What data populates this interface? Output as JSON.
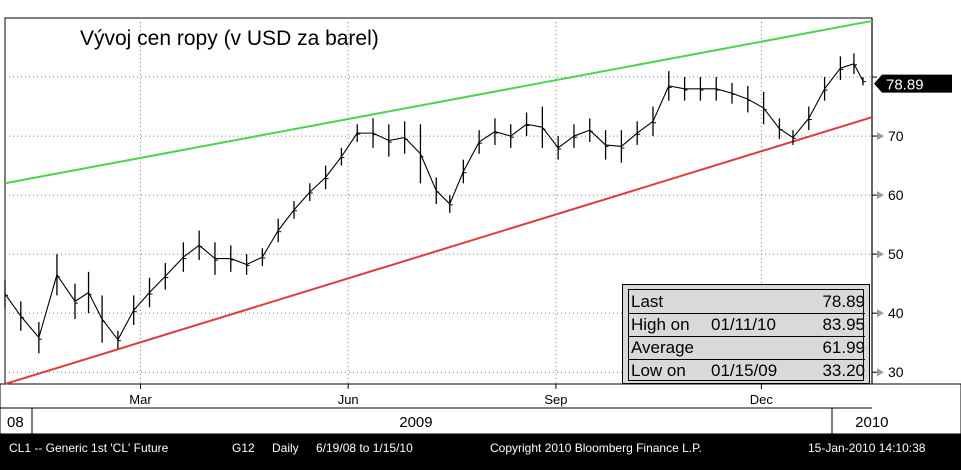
{
  "title": "Vývoj cen ropy (v USD za barel)",
  "last_price_label": "78.89",
  "stats_box": {
    "rows": [
      {
        "label": "Last",
        "date": "",
        "value": "78.89"
      },
      {
        "label": "High on",
        "date": "01/11/10",
        "value": "83.95"
      },
      {
        "label": "Average",
        "date": "",
        "value": "61.99"
      },
      {
        "label": "Low on",
        "date": "01/15/09",
        "value": "33.20"
      }
    ]
  },
  "footer": {
    "security": "CL1 -- Generic 1st 'CL' Future",
    "code": "G12",
    "period": "Daily",
    "range": "6/19/08 to 1/15/10",
    "copyright": "Copyright 2010 Bloomberg Finance L.P.",
    "timestamp": "15-Jan-2010 14:10:38"
  },
  "colors": {
    "background": "#ffffff",
    "price": "#000000",
    "resistance_line": "#4cd44c",
    "support_line": "#e03c3c",
    "grid": "#808080",
    "last_price_box": "#000000",
    "stats_box": "#d9d9d9",
    "statusbar": "#000000"
  },
  "chart_data": {
    "type": "line",
    "title": "Vývoj cen ropy (v USD za barel)",
    "style": "daily high-low bars",
    "x_range": [
      "2008-12-31",
      "2010-01-19"
    ],
    "ylim": [
      28.0,
      90.0
    ],
    "y_ticks": [
      30,
      40,
      50,
      60,
      70
    ],
    "month_ticks": [
      {
        "date": "2009-03-01",
        "label": "Mar"
      },
      {
        "date": "2009-06-01",
        "label": "Jun"
      },
      {
        "date": "2009-09-01",
        "label": "Sep"
      },
      {
        "date": "2009-12-01",
        "label": "Dec"
      }
    ],
    "year_labels": [
      {
        "date": "2008-12-31",
        "label": "08"
      },
      {
        "date": "2009-07-01",
        "label": "2009"
      },
      {
        "date": "2010-01-08",
        "label": "2010"
      }
    ],
    "grid": "dotted horizontal and vertical",
    "series": [
      {
        "x": [
          "2008-12-31",
          "2009-01-07",
          "2009-01-15",
          "2009-01-23",
          "2009-01-31",
          "2009-02-06",
          "2009-02-12",
          "2009-02-19",
          "2009-02-26",
          "2009-03-05",
          "2009-03-12",
          "2009-03-20",
          "2009-03-27",
          "2009-04-03",
          "2009-04-10",
          "2009-04-17",
          "2009-04-24",
          "2009-05-01",
          "2009-05-08",
          "2009-05-15",
          "2009-05-22",
          "2009-05-29",
          "2009-06-05",
          "2009-06-12",
          "2009-06-19",
          "2009-06-26",
          "2009-07-03",
          "2009-07-10",
          "2009-07-16",
          "2009-07-22",
          "2009-07-29",
          "2009-08-05",
          "2009-08-12",
          "2009-08-19",
          "2009-08-26",
          "2009-09-02",
          "2009-09-09",
          "2009-09-16",
          "2009-09-23",
          "2009-09-30",
          "2009-10-07",
          "2009-10-14",
          "2009-10-21",
          "2009-10-28",
          "2009-11-04",
          "2009-11-11",
          "2009-11-18",
          "2009-11-25",
          "2009-12-02",
          "2009-12-09",
          "2009-12-15",
          "2009-12-22",
          "2009-12-29",
          "2010-01-05",
          "2010-01-11",
          "2010-01-15"
        ],
        "high": [
          45.5,
          42.0,
          38.5,
          50.0,
          45.0,
          47.0,
          43.0,
          37.0,
          43.0,
          46.0,
          48.5,
          52.0,
          54.0,
          52.0,
          51.5,
          50.0,
          51.0,
          56.0,
          59.0,
          62.0,
          65.0,
          68.0,
          72.0,
          73.0,
          72.0,
          72.5,
          72.0,
          63.0,
          60.0,
          66.0,
          71.0,
          73.0,
          72.0,
          74.0,
          75.0,
          70.0,
          72.0,
          73.0,
          71.0,
          71.0,
          72.5,
          75.0,
          81.0,
          80.0,
          80.0,
          80.0,
          79.0,
          78.5,
          77.5,
          73.0,
          71.0,
          75.0,
          80.0,
          83.5,
          84.0,
          80.0
        ],
        "low": [
          41.0,
          37.0,
          33.2,
          43.0,
          39.0,
          40.0,
          35.0,
          34.0,
          38.0,
          41.0,
          44.0,
          47.0,
          49.0,
          46.5,
          47.0,
          46.5,
          48.0,
          52.0,
          56.0,
          59.0,
          61.0,
          65.0,
          69.0,
          68.0,
          66.5,
          67.0,
          62.0,
          58.5,
          57.0,
          62.0,
          67.0,
          68.5,
          68.0,
          70.0,
          68.0,
          66.0,
          68.0,
          69.0,
          66.0,
          65.5,
          68.5,
          70.0,
          76.0,
          76.0,
          76.0,
          76.0,
          75.5,
          74.0,
          72.0,
          69.5,
          68.5,
          71.0,
          76.0,
          79.5,
          80.5,
          78.6
        ]
      },
      {
        "name": "",
        "x": [
          "2008-12-31",
          "2010-01-19"
        ],
        "values": [
          62.0,
          89.5
        ]
      },
      {
        "name": "",
        "x": [
          "2008-12-31",
          "2010-01-19"
        ],
        "values": [
          28.0,
          73.2
        ]
      }
    ],
    "last_price": 78.89
  }
}
